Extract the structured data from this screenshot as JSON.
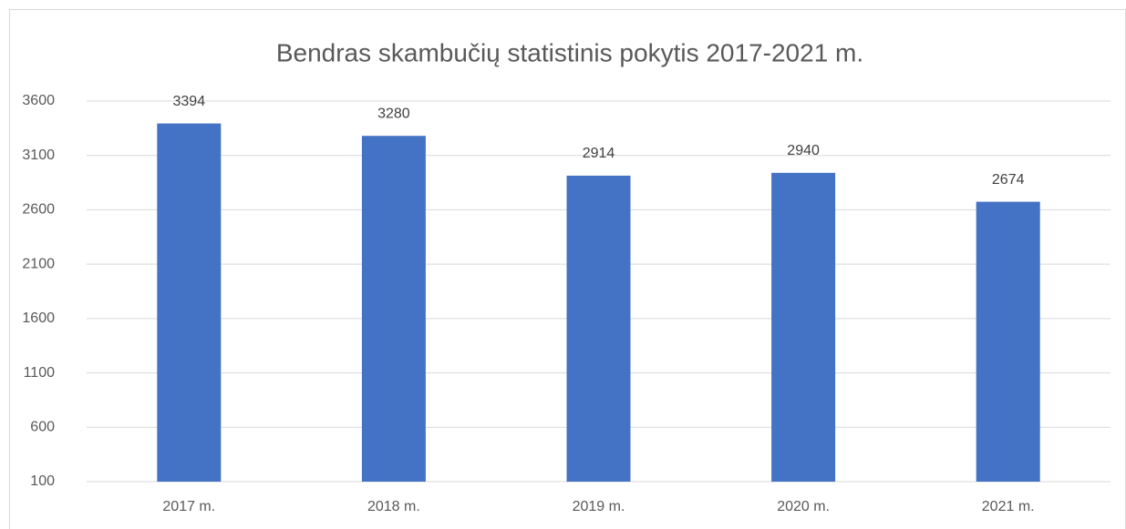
{
  "chart_data": {
    "type": "bar",
    "title": "Bendras skambučių statistinis pokytis 2017-2021 m.",
    "categories": [
      "2017 m.",
      "2018 m.",
      "2019 m.",
      "2020 m.",
      "2021 m."
    ],
    "values": [
      3394,
      3280,
      2914,
      2940,
      2674
    ],
    "color": "#4472c4",
    "ylim": [
      100,
      3600
    ],
    "yticks": [
      100,
      600,
      1100,
      1600,
      2100,
      2600,
      3100,
      3600
    ],
    "grid": true
  }
}
